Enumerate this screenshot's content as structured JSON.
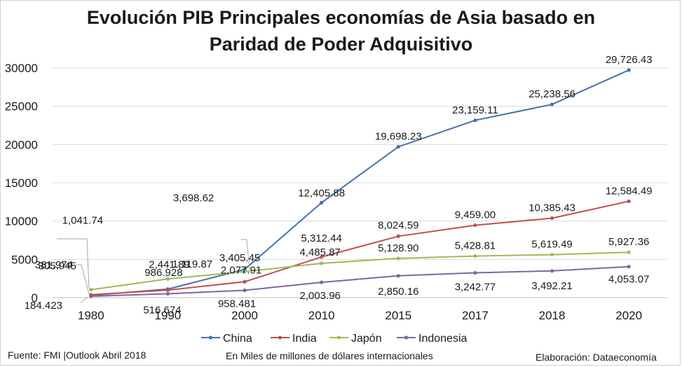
{
  "chart_data": {
    "type": "line",
    "title_line1": "Evolución PIB Principales economías de Asia basado en",
    "title_line2": "Paridad de Poder Adquisitivo",
    "categories": [
      "1980",
      "1990",
      "2000",
      "2010",
      "2015",
      "2017",
      "2018",
      "2020"
    ],
    "y_ticks": [
      "0",
      "5000",
      "10000",
      "15000",
      "20000",
      "25000",
      "30000"
    ],
    "ylim": [
      0,
      30000
    ],
    "grid": true,
    "legend_position": "bottom",
    "series": [
      {
        "name": "China",
        "color": "#4472A8",
        "values": [
          305.945,
          1119.87,
          3698.62,
          12405.88,
          19698.23,
          23159.11,
          25238.56,
          29726.43
        ],
        "labels": [
          "305.945",
          "1,119.87",
          "3,698.62",
          "12,405.88",
          "19,698.23",
          "23,159.11",
          "25,238.56",
          "29,726.43"
        ]
      },
      {
        "name": "India",
        "color": "#C0504D",
        "values": [
          381.974,
          986.928,
          2077.91,
          5312.44,
          8024.59,
          9459.0,
          10385.43,
          12584.49
        ],
        "labels": [
          "381.974",
          "986.928",
          "2,077.91",
          "5,312.44",
          "8,024.59",
          "9,459.00",
          "10,385.43",
          "12,584.49"
        ]
      },
      {
        "name": "Japón",
        "color": "#9BBB59",
        "values": [
          1041.74,
          2441.89,
          3405.45,
          4485.87,
          5128.9,
          5428.81,
          5619.49,
          5927.36
        ],
        "labels": [
          "1,041.74",
          "2,441.89",
          "3,405.45",
          "4,485.87",
          "5,128.90",
          "5,428.81",
          "5,619.49",
          "5,927.36"
        ]
      },
      {
        "name": "Indonesia",
        "color": "#8064A2",
        "values": [
          184.423,
          516.674,
          958.481,
          2003.96,
          2850.16,
          3242.77,
          3492.21,
          4053.07
        ],
        "labels": [
          "184.423",
          "516.674",
          "958.481",
          "2,003.96",
          "2,850.16",
          "3,242.77",
          "3,492.21",
          "4,053.07"
        ]
      }
    ]
  },
  "footer": {
    "source": "Fuente: FMI |Outlook Abril 2018",
    "units": "En Miles de millones de dólares internacionales",
    "credit": "Elaboración: Dataeconomía"
  }
}
